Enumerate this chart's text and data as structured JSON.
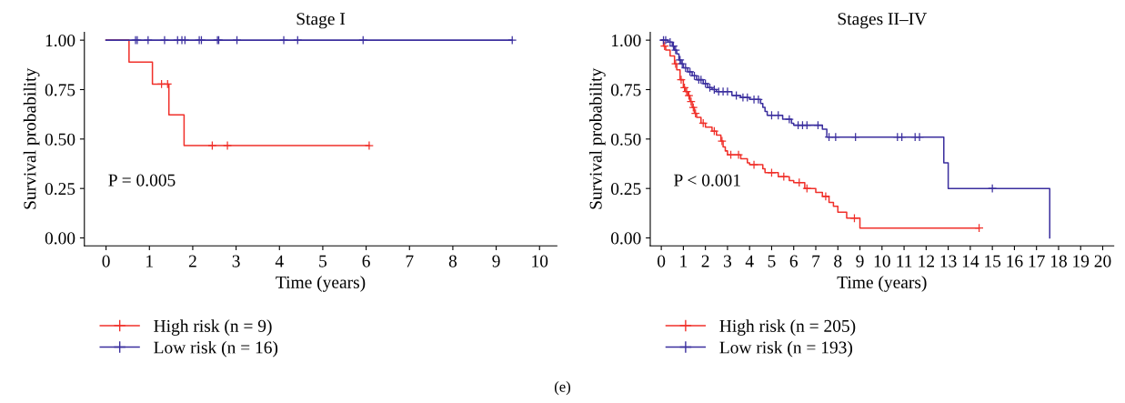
{
  "chart_data": [
    {
      "type": "step",
      "title": "Stage I",
      "xlabel": "Time (years)",
      "ylabel": "Survival probability",
      "xlim": [
        -0.5,
        10.4
      ],
      "xticks": [
        0,
        1,
        2,
        3,
        4,
        5,
        6,
        7,
        8,
        9,
        10
      ],
      "ylim": [
        -0.04,
        1.04
      ],
      "yticks": [
        {
          "value": 0,
          "label": "0.00"
        },
        {
          "value": 0.25,
          "label": "0.25"
        },
        {
          "value": 0.5,
          "label": "0.50"
        },
        {
          "value": 0.75,
          "label": "0.75"
        },
        {
          "value": 1,
          "label": "1.00"
        }
      ],
      "grid": false,
      "legend": "bottom left",
      "marker": "none",
      "annotations": [
        "P = 0.005"
      ],
      "series": [
        {
          "name": "High risk (n = 9)",
          "color": "#f0302a",
          "x": [
            0,
            0.53,
            1.07,
            1.45,
            1.8,
            6.07
          ],
          "values": [
            1.0,
            0.889,
            0.778,
            0.622,
            0.467,
            0.467
          ]
        },
        {
          "name": "Low risk (n = 16)",
          "color": "#3b2f9e",
          "x": [
            0,
            9.37
          ],
          "values": [
            1.0,
            1.0
          ]
        },
        {
          "type": "scatter",
          "marker": "cross",
          "color": "#f0302a",
          "x": [
            1.28,
            1.42,
            2.45,
            2.8,
            6.07
          ],
          "values": [
            0.778,
            0.778,
            0.467,
            0.467,
            0.467
          ]
        },
        {
          "type": "scatter",
          "marker": "cross",
          "color": "#3b2f9e",
          "x": [
            0.68,
            0.72,
            0.97,
            1.35,
            1.65,
            1.75,
            1.82,
            2.15,
            2.2,
            2.57,
            2.6,
            3.02,
            4.1,
            4.42,
            5.93,
            9.37
          ],
          "values": [
            1,
            1,
            1,
            1,
            1,
            1,
            1,
            1,
            1,
            1,
            1,
            1,
            1,
            1,
            1,
            1
          ]
        }
      ]
    },
    {
      "type": "step",
      "title": "Stages II–IV",
      "xlabel": "Time (years)",
      "ylabel": "Survival probability",
      "xlim": [
        -0.5,
        20.5
      ],
      "xticks": [
        0,
        1,
        2,
        3,
        4,
        5,
        6,
        7,
        8,
        9,
        10,
        11,
        12,
        13,
        14,
        15,
        16,
        17,
        18,
        19,
        20
      ],
      "ylim": [
        -0.04,
        1.04
      ],
      "yticks": [
        {
          "value": 0,
          "label": "0.00"
        },
        {
          "value": 0.25,
          "label": "0.25"
        },
        {
          "value": 0.5,
          "label": "0.50"
        },
        {
          "value": 0.75,
          "label": "0.75"
        },
        {
          "value": 1,
          "label": "1.00"
        }
      ],
      "grid": false,
      "legend": "bottom left",
      "marker": "none",
      "annotations": [
        "P < 0.001",
        "(e)"
      ],
      "series": [
        {
          "name": "High risk (n = 205)",
          "color": "#f0302a",
          "x": [
            0,
            0.1,
            0.2,
            0.4,
            0.6,
            0.7,
            0.85,
            1.0,
            1.1,
            1.2,
            1.3,
            1.4,
            1.5,
            1.6,
            1.8,
            2.0,
            2.3,
            2.5,
            2.7,
            2.8,
            2.9,
            3.0,
            3.6,
            3.9,
            4.0,
            4.6,
            4.7,
            5.3,
            5.8,
            6.0,
            6.5,
            7.0,
            7.3,
            7.6,
            7.8,
            8.0,
            8.4,
            9.0,
            14.4
          ],
          "values": [
            1.0,
            0.97,
            0.95,
            0.92,
            0.88,
            0.85,
            0.8,
            0.76,
            0.74,
            0.72,
            0.69,
            0.66,
            0.63,
            0.61,
            0.58,
            0.56,
            0.54,
            0.52,
            0.49,
            0.46,
            0.44,
            0.42,
            0.4,
            0.38,
            0.37,
            0.35,
            0.33,
            0.31,
            0.29,
            0.28,
            0.25,
            0.23,
            0.21,
            0.18,
            0.16,
            0.13,
            0.1,
            0.05,
            0.05
          ]
        },
        {
          "name": "Low risk (n = 193)",
          "color": "#3b2f9e",
          "x": [
            0,
            0.3,
            0.5,
            0.6,
            0.7,
            0.8,
            0.9,
            1.0,
            1.2,
            1.4,
            1.6,
            1.9,
            2.1,
            2.3,
            2.5,
            3.2,
            3.6,
            4.0,
            4.5,
            4.6,
            4.7,
            4.8,
            5.5,
            5.9,
            6.0,
            7.3,
            7.5,
            12.8,
            13.0,
            17.6
          ],
          "values": [
            1.0,
            0.99,
            0.97,
            0.95,
            0.93,
            0.9,
            0.88,
            0.86,
            0.84,
            0.82,
            0.8,
            0.78,
            0.76,
            0.75,
            0.74,
            0.72,
            0.71,
            0.7,
            0.68,
            0.66,
            0.64,
            0.62,
            0.6,
            0.58,
            0.57,
            0.55,
            0.51,
            0.38,
            0.25,
            0.0
          ]
        },
        {
          "type": "scatter",
          "marker": "cross",
          "color": "#f0302a",
          "x": [
            0.15,
            0.65,
            0.9,
            1.05,
            1.15,
            1.25,
            1.35,
            1.45,
            1.55,
            1.9,
            2.4,
            2.75,
            3.15,
            3.5,
            4.2,
            5.0,
            5.55,
            6.25,
            6.6,
            7.45,
            8.75,
            14.4
          ],
          "values": [
            0.97,
            0.88,
            0.8,
            0.76,
            0.74,
            0.72,
            0.69,
            0.66,
            0.63,
            0.58,
            0.54,
            0.49,
            0.42,
            0.42,
            0.37,
            0.33,
            0.31,
            0.28,
            0.25,
            0.21,
            0.1,
            0.05
          ]
        },
        {
          "type": "scatter",
          "marker": "cross",
          "color": "#3b2f9e",
          "x": [
            0.1,
            0.2,
            0.4,
            0.55,
            0.65,
            0.85,
            0.95,
            1.1,
            1.3,
            1.5,
            1.7,
            1.8,
            2.0,
            2.2,
            2.4,
            2.6,
            2.8,
            3.0,
            3.4,
            3.7,
            3.9,
            4.2,
            4.4,
            5.0,
            5.3,
            5.8,
            6.2,
            6.4,
            6.6,
            7.1,
            7.6,
            7.9,
            8.8,
            10.7,
            10.9,
            11.5,
            11.7,
            15.0
          ],
          "values": [
            1.0,
            1.0,
            0.99,
            0.97,
            0.95,
            0.9,
            0.88,
            0.86,
            0.84,
            0.82,
            0.8,
            0.8,
            0.78,
            0.76,
            0.75,
            0.74,
            0.74,
            0.74,
            0.72,
            0.71,
            0.71,
            0.7,
            0.7,
            0.62,
            0.62,
            0.6,
            0.57,
            0.57,
            0.57,
            0.57,
            0.51,
            0.51,
            0.51,
            0.51,
            0.51,
            0.51,
            0.51,
            0.25
          ]
        }
      ]
    }
  ]
}
